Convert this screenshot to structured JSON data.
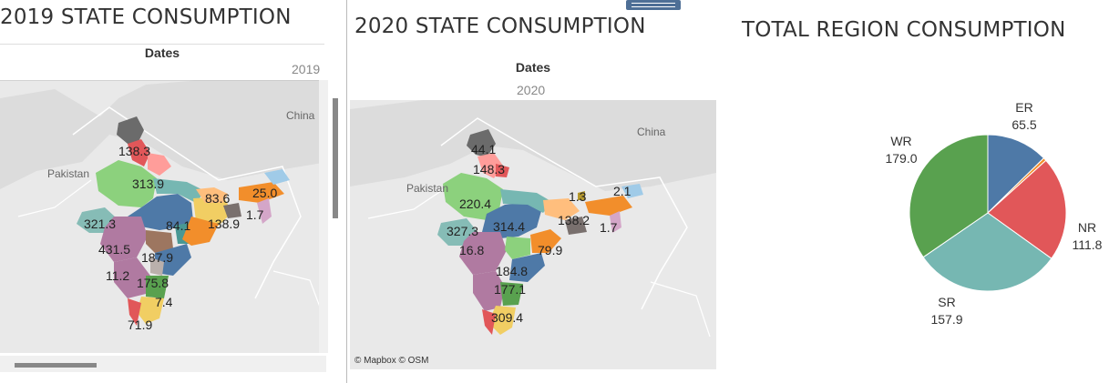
{
  "panel2019": {
    "title": "2019 STATE CONSUMPTION",
    "header": "Dates",
    "year": "2019",
    "country_labels": [
      "Pakistan",
      "China"
    ],
    "values": [
      "138.3",
      "313.9",
      "83.6",
      "25.0",
      "321.3",
      "84.1",
      "138.9",
      "431.5",
      "187.9",
      "1.7",
      "11.2",
      "175.8",
      "7.4",
      "71.9"
    ]
  },
  "panel2020": {
    "title": "2020 STATE CONSUMPTION",
    "header": "Dates",
    "year": "2020",
    "country_labels": [
      "Pakistan",
      "China"
    ],
    "values": [
      "44.1",
      "148.3",
      "220.4",
      "1.3",
      "2.1",
      "314.4",
      "138.2",
      "327.3",
      "1.7",
      "16.8",
      "79.9",
      "184.8",
      "177.1",
      "309.4"
    ],
    "credit": "© Mapbox © OSM"
  },
  "region": {
    "title": "TOTAL REGION CONSUMPTION"
  },
  "chart_data": {
    "type": "pie",
    "title": "TOTAL REGION CONSUMPTION",
    "slices": [
      {
        "label": "ER",
        "value": 65.5,
        "display": "65.5",
        "color": "#4e79a7"
      },
      {
        "label": "",
        "value": 3.4,
        "display": "",
        "color": "#f28e2b"
      },
      {
        "label": "NR",
        "value": 111.8,
        "display": "111.8",
        "color": "#e15759"
      },
      {
        "label": "SR",
        "value": 157.9,
        "display": "157.9",
        "color": "#76b7b2"
      },
      {
        "label": "WR",
        "value": 179.0,
        "display": "179.0",
        "color": "#59a14f"
      }
    ]
  }
}
